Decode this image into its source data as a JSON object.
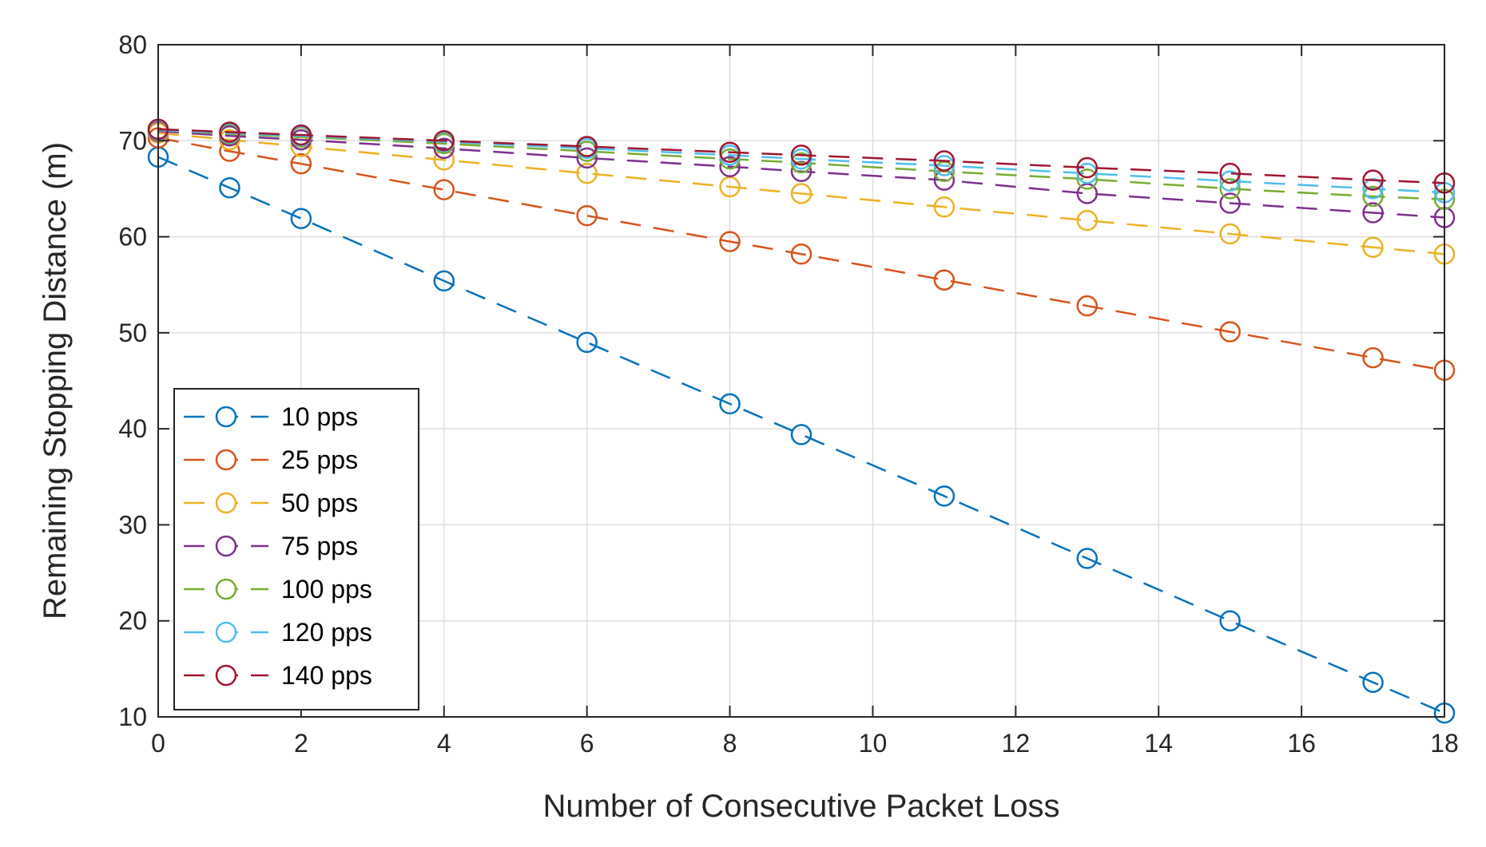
{
  "chart_data": {
    "type": "line",
    "title": "",
    "xlabel": "Number of Consecutive Packet Loss",
    "ylabel": "Remaining Stopping Distance (m)",
    "xlim": [
      0,
      18
    ],
    "ylim": [
      10,
      80
    ],
    "xticks": [
      0,
      2,
      4,
      6,
      8,
      10,
      12,
      14,
      16,
      18
    ],
    "yticks": [
      10,
      20,
      30,
      40,
      50,
      60,
      70,
      80
    ],
    "xtick_labels": [
      "0",
      "2",
      "4",
      "6",
      "8",
      "10",
      "12",
      "14",
      "16",
      "18"
    ],
    "ytick_labels": [
      "10",
      "20",
      "30",
      "40",
      "50",
      "60",
      "70",
      "80"
    ],
    "grid": true,
    "legend_position": "bottom-left",
    "line_style": "dashed",
    "marker": "circle",
    "x": [
      0,
      1,
      2,
      4,
      6,
      8,
      9,
      11,
      13,
      15,
      17,
      18
    ],
    "series": [
      {
        "name": "10 pps",
        "color": "#0072BD",
        "values": [
          68.3,
          65.1,
          61.9,
          55.4,
          49.0,
          42.6,
          39.4,
          33.0,
          26.5,
          20.0,
          13.6,
          10.4
        ]
      },
      {
        "name": "25 pps",
        "color": "#D95319",
        "values": [
          70.3,
          68.9,
          67.6,
          64.9,
          62.2,
          59.5,
          58.2,
          55.5,
          52.8,
          50.1,
          47.4,
          46.1
        ]
      },
      {
        "name": "50 pps",
        "color": "#EDB120",
        "values": [
          70.8,
          70.1,
          69.4,
          68.0,
          66.6,
          65.2,
          64.5,
          63.1,
          61.7,
          60.3,
          58.9,
          58.2
        ]
      },
      {
        "name": "75 pps",
        "color": "#7E2F8E",
        "values": [
          71.0,
          70.5,
          70.1,
          69.2,
          68.2,
          67.3,
          66.8,
          65.9,
          64.5,
          63.5,
          62.5,
          62.0
        ]
      },
      {
        "name": "100 pps",
        "color": "#77AC30",
        "values": [
          71.1,
          70.7,
          70.4,
          69.7,
          68.9,
          68.1,
          67.7,
          66.8,
          66.0,
          65.0,
          64.2,
          63.9
        ]
      },
      {
        "name": "120 pps",
        "color": "#4DBEEE",
        "values": [
          71.1,
          70.8,
          70.5,
          69.9,
          69.2,
          68.5,
          68.1,
          67.4,
          66.6,
          65.8,
          65.0,
          64.6
        ]
      },
      {
        "name": "140 pps",
        "color": "#A2142F",
        "values": [
          71.2,
          70.9,
          70.6,
          70.0,
          69.4,
          68.8,
          68.5,
          67.9,
          67.2,
          66.6,
          65.9,
          65.6
        ]
      }
    ]
  }
}
